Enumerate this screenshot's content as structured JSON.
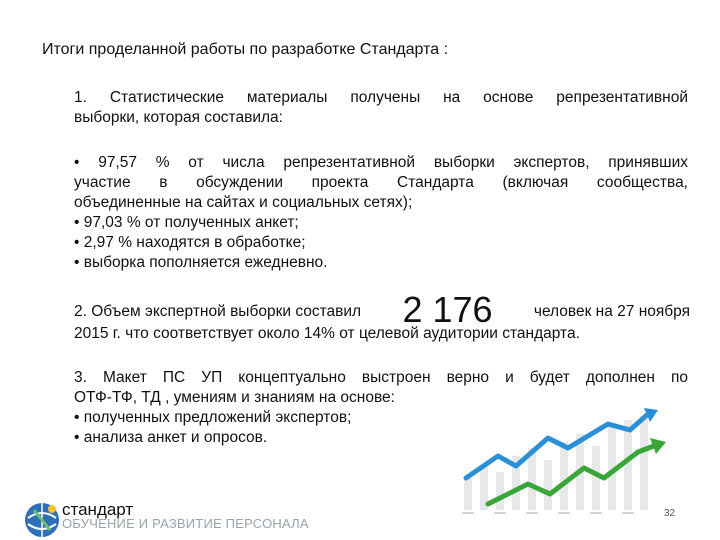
{
  "title": "Итоги проделанной работы по разработке Стандарта :",
  "p1": {
    "line1": "1. Статистические материалы получены на основе репрезентативной",
    "line2": "выборки, которая составила:"
  },
  "p2": {
    "line1": "• 97,57 % от числа репрезентативной выборки экспертов, принявших",
    "line2": "участие в обсуждении проекта Стандарта (включая сообщества,",
    "line3": "объединенные на сайтах и социальных сетях);",
    "line4": "• 97,03 % от полученных анкет;",
    "line5": "• 2,97 %  находятся в обработке;",
    "line6": "• выборка пополняется ежедневно."
  },
  "p3": {
    "before": "2. Объем экспертной выборки составил",
    "number": "2 176",
    "after": "человек на 27 ноября",
    "line2": "2015 г. что соответствует около 14% от целевой аудитории стандарта."
  },
  "p4": {
    "line1": "3. Макет ПС УП концептуально выстроен верно и будет дополнен по",
    "line2": "ОТФ-ТФ, ТД , умениям и знаниям на основе:",
    "line3": "• полученных предложений экспертов;",
    "line4": "• анализа анкет и опросов."
  },
  "logo": {
    "word": "стандарт",
    "sub": "ОБУЧЕНИЕ И РАЗВИТИЕ ПЕРСОНАЛА"
  },
  "page_number": "32",
  "colors": {
    "arrow_blue": "#2a8fd6",
    "arrow_green": "#3aa63a",
    "bars": "#e6e8ea"
  }
}
